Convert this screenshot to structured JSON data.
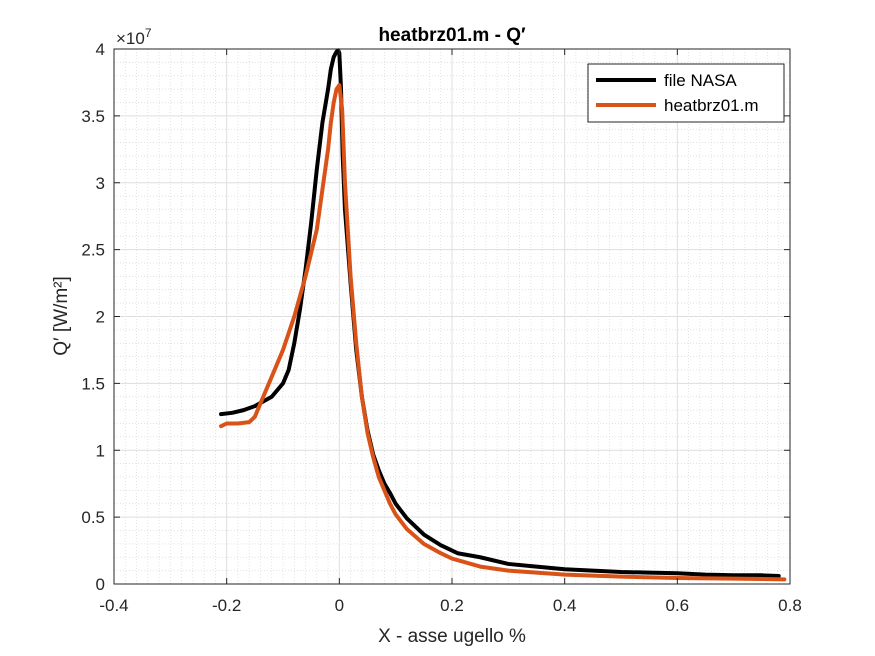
{
  "chart_data": {
    "type": "line",
    "title": "heatbrz01.m - Q′",
    "xlabel": "X - asse ugello %",
    "ylabel": "Q′ [W/m²]",
    "y_exponent_label": "×10",
    "y_exponent_power": "7",
    "xlim": [
      -0.4,
      0.8
    ],
    "ylim": [
      0,
      4
    ],
    "x_ticks": [
      -0.4,
      -0.2,
      0,
      0.2,
      0.4,
      0.6,
      0.8
    ],
    "x_tick_labels": [
      "-0.4",
      "-0.2",
      "0",
      "0.2",
      "0.4",
      "0.6",
      "0.8"
    ],
    "y_ticks": [
      0,
      0.5,
      1,
      1.5,
      2,
      2.5,
      3,
      3.5,
      4
    ],
    "y_tick_labels": [
      "0",
      "0.5",
      "1",
      "1.5",
      "2",
      "2.5",
      "3",
      "3.5",
      "4"
    ],
    "grid": true,
    "minor_grid": true,
    "legend_position": "top-right",
    "series": [
      {
        "name": "file NASA",
        "color": "#000000",
        "x": [
          -0.21,
          -0.19,
          -0.17,
          -0.15,
          -0.12,
          -0.1,
          -0.09,
          -0.08,
          -0.07,
          -0.06,
          -0.05,
          -0.04,
          -0.03,
          -0.02,
          -0.015,
          -0.01,
          -0.005,
          -0.002,
          0.0,
          0.003,
          0.006,
          0.01,
          0.02,
          0.03,
          0.04,
          0.05,
          0.06,
          0.07,
          0.08,
          0.09,
          0.1,
          0.12,
          0.15,
          0.18,
          0.21,
          0.25,
          0.3,
          0.35,
          0.4,
          0.45,
          0.5,
          0.55,
          0.6,
          0.65,
          0.7,
          0.75,
          0.78
        ],
        "y": [
          1.27,
          1.28,
          1.3,
          1.33,
          1.4,
          1.5,
          1.6,
          1.8,
          2.05,
          2.35,
          2.7,
          3.1,
          3.45,
          3.7,
          3.85,
          3.94,
          3.98,
          3.99,
          3.97,
          3.7,
          3.2,
          2.8,
          2.25,
          1.75,
          1.4,
          1.15,
          0.97,
          0.85,
          0.75,
          0.68,
          0.6,
          0.49,
          0.37,
          0.29,
          0.23,
          0.2,
          0.15,
          0.13,
          0.11,
          0.1,
          0.09,
          0.085,
          0.08,
          0.07,
          0.065,
          0.065,
          0.06
        ]
      },
      {
        "name": "heatbrz01.m",
        "color": "#D95319",
        "x": [
          -0.21,
          -0.2,
          -0.18,
          -0.16,
          -0.15,
          -0.13,
          -0.1,
          -0.08,
          -0.06,
          -0.04,
          -0.03,
          -0.02,
          -0.015,
          -0.01,
          -0.005,
          0.0,
          0.005,
          0.01,
          0.02,
          0.03,
          0.04,
          0.05,
          0.06,
          0.07,
          0.08,
          0.09,
          0.1,
          0.12,
          0.15,
          0.18,
          0.2,
          0.25,
          0.3,
          0.4,
          0.5,
          0.6,
          0.7,
          0.79
        ],
        "y": [
          1.18,
          1.2,
          1.2,
          1.21,
          1.25,
          1.45,
          1.75,
          2.0,
          2.3,
          2.65,
          2.95,
          3.25,
          3.45,
          3.6,
          3.7,
          3.73,
          3.55,
          3.0,
          2.3,
          1.8,
          1.4,
          1.13,
          0.95,
          0.8,
          0.7,
          0.6,
          0.52,
          0.41,
          0.3,
          0.23,
          0.19,
          0.13,
          0.1,
          0.07,
          0.055,
          0.045,
          0.04,
          0.035
        ]
      }
    ]
  }
}
